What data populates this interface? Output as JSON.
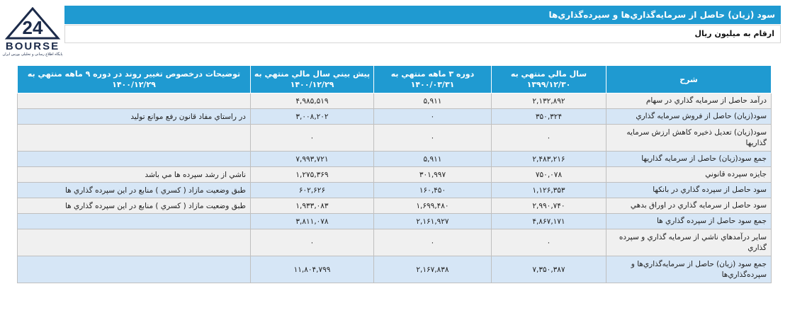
{
  "logo": {
    "word": "BOURSE",
    "tagline": "پایگاه اطلاع رسانی و تحلیلی بورس ایران"
  },
  "title": "سود (زيان) حاصل از سرمايه‌گذاري‌ها و سپرده‌گذاري‌ها",
  "unit_note": "ارقام به ميليون ريال",
  "table": {
    "headers": [
      "شرح",
      "سال مالي منتهي به ۱۳۹۹/۱۲/۳۰",
      "دوره ۳ ماهه منتهي به ۱۴۰۰/۰۳/۳۱",
      "پيش بيني سال مالي منتهي به ۱۴۰۰/۱۲/۲۹",
      "توضيحات درخصوص تغيير روند در دوره ۹ ماهه منتهي به ۱۴۰۰/۱۲/۲۹"
    ],
    "rows": [
      {
        "label": "درآمد حاصل از سرمايه گذاري در سهام",
        "fy": "۲,۱۳۲,۸۹۲",
        "q3": "۵,۹۱۱",
        "forecast": "۴,۹۸۵,۵۱۹",
        "note": ""
      },
      {
        "label": "سود(زيان) حاصل از فروش سرمايه گذاري",
        "fy": "۳۵۰,۳۲۴",
        "q3": "۰",
        "forecast": "۳,۰۰۸,۲۰۲",
        "note": "در راستاي مفاد قانون رفع موانع توليد"
      },
      {
        "label": "سود(زيان) تعديل ذخيره کاهش ارزش سرمايه گذاريها",
        "fy": "۰",
        "q3": "۰",
        "forecast": "۰",
        "note": ""
      },
      {
        "label": "جمع سود(زيان) حاصل از سرمايه گذاريها",
        "fy": "۲,۴۸۳,۲۱۶",
        "q3": "۵,۹۱۱",
        "forecast": "۷,۹۹۳,۷۲۱",
        "note": ""
      },
      {
        "label": "جايزه سپرده قانوني",
        "fy": "۷۵۰,۰۷۸",
        "q3": "۳۰۱,۹۹۷",
        "forecast": "۱,۲۷۵,۳۶۹",
        "note": "ناشي از رشد سپرده ها مي باشد"
      },
      {
        "label": "سود حاصل از سپرده گذاري در بانکها",
        "fy": "۱,۱۲۶,۳۵۳",
        "q3": "۱۶۰,۴۵۰",
        "forecast": "۶۰۲,۶۲۶",
        "note": "طبق وضعيت مازاد ( کسري ) منابع در اين سپرده گذاري ها"
      },
      {
        "label": "سود حاصل از سرمايه گذاري در اوراق بدهي",
        "fy": "۲,۹۹۰,۷۴۰",
        "q3": "۱,۶۹۹,۴۸۰",
        "forecast": "۱,۹۳۳,۰۸۳",
        "note": "طبق وضعيت مازاد ( کسري ) منابع در اين سپرده گذاري ها"
      },
      {
        "label": "جمع سود حاصل از سپرده گذاري ها",
        "fy": "۴,۸۶۷,۱۷۱",
        "q3": "۲,۱۶۱,۹۲۷",
        "forecast": "۳,۸۱۱,۰۷۸",
        "note": ""
      },
      {
        "label": "ساير درآمدهاي ناشي از سرمايه گذاري و سپرده گذاري",
        "fy": "۰",
        "q3": "۰",
        "forecast": "۰",
        "note": ""
      },
      {
        "label": "جمع سود (زيان) حاصل از سرمايه‌گذاري‌ها و سپرده‌گذاري‌ها",
        "fy": "۷,۳۵۰,۳۸۷",
        "q3": "۲,۱۶۷,۸۳۸",
        "forecast": "۱۱,۸۰۴,۷۹۹",
        "note": ""
      }
    ]
  }
}
